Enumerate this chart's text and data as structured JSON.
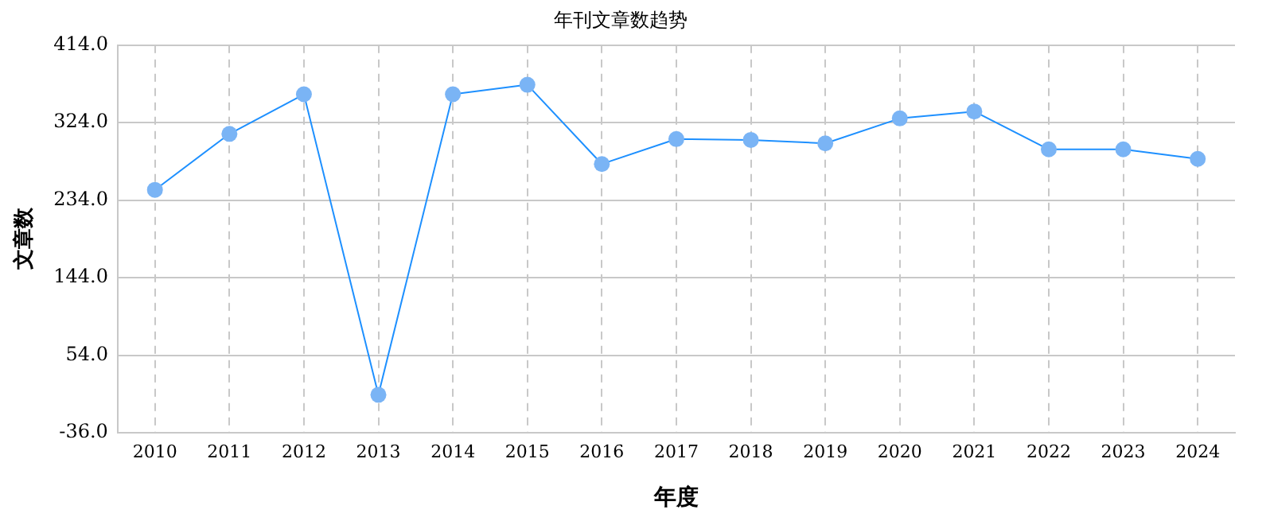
{
  "chart_data": {
    "type": "line",
    "title": "年刊文章数趋势",
    "xlabel": "年度",
    "ylabel": "文章数",
    "categories": [
      "2010",
      "2011",
      "2012",
      "2013",
      "2014",
      "2015",
      "2016",
      "2017",
      "2018",
      "2019",
      "2020",
      "2021",
      "2022",
      "2023",
      "2024"
    ],
    "series": [
      {
        "color": "#1e90ff",
        "values": [
          246,
          311,
          357,
          8,
          357,
          368,
          276,
          305,
          304,
          300,
          329,
          337,
          293,
          293,
          282
        ]
      }
    ],
    "ylim": [
      -36,
      414
    ],
    "yticks": [
      {
        "value": -36,
        "label": "-36.0"
      },
      {
        "value": 54,
        "label": "54.0"
      },
      {
        "value": 144,
        "label": "144.0"
      },
      {
        "value": 234,
        "label": "234.0"
      },
      {
        "value": 324,
        "label": "324.0"
      },
      {
        "value": 414,
        "label": "414.0"
      }
    ],
    "grid": true,
    "legend": false,
    "marker": "circle",
    "line_style": "solid"
  }
}
